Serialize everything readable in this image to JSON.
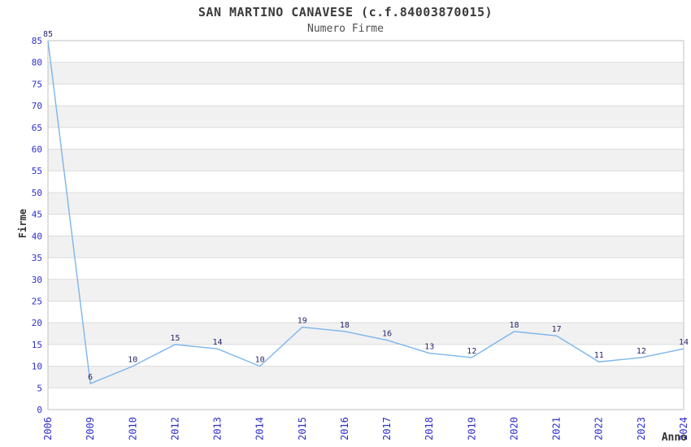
{
  "chart_data": {
    "type": "line",
    "title": "SAN MARTINO CANAVESE (c.f.84003870015)",
    "subtitle": "Numero Firme",
    "xlabel": "Anno",
    "ylabel": "Firme",
    "categories": [
      "2006",
      "2009",
      "2010",
      "2012",
      "2013",
      "2014",
      "2015",
      "2016",
      "2017",
      "2018",
      "2019",
      "2020",
      "2021",
      "2022",
      "2023",
      "2024"
    ],
    "values": [
      85,
      6,
      10,
      15,
      14,
      10,
      19,
      18,
      16,
      13,
      12,
      18,
      17,
      11,
      12,
      14
    ],
    "ylim": [
      0,
      85
    ],
    "ytick_step": 5,
    "grid": true,
    "alternating_bands": true,
    "legend": "none",
    "markers": false,
    "data_labels": true,
    "colors": {
      "line": "#7cb5ec",
      "tick_label": "#2e2ecc",
      "data_label": "#26266b",
      "band_alt": "#f1f1f1",
      "gridline": "#dcdcdc",
      "plot_border": "#c2c2c2",
      "title": "#3a3a3a",
      "subtitle": "#4f4f4f",
      "axis_title": "#333333"
    }
  }
}
